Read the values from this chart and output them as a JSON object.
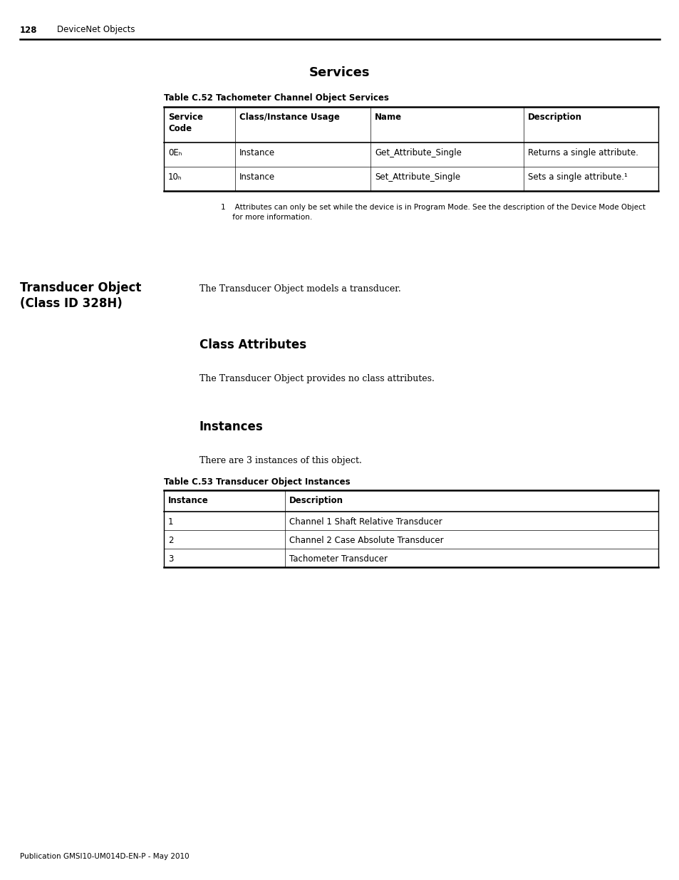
{
  "page_number": "128",
  "page_header_text": "DeviceNet Objects",
  "section1_title": "Services",
  "table1_caption": "Table C.52 Tachometer Channel Object Services",
  "table1_headers": [
    "Service\nCode",
    "Class/Instance Usage",
    "Name",
    "Description"
  ],
  "table1_rows": [
    [
      "0Eₕ",
      "Instance",
      "Get_Attribute_Single",
      "Returns a single attribute."
    ],
    [
      "10ₕ",
      "Instance",
      "Set_Attribute_Single",
      "Sets a single attribute.¹"
    ]
  ],
  "footnote_line1": "1    Attributes can only be set while the device is in Program Mode. See the description of the Device Mode Object",
  "footnote_line2": "     for more information.",
  "sidebar_title_line1": "Transducer Object",
  "sidebar_title_line2": "(Class ID 328H)",
  "body_intro": "The Transducer Object models a transducer.",
  "section2_title": "Class Attributes",
  "class_attr_text": "The Transducer Object provides no class attributes.",
  "section3_title": "Instances",
  "instances_intro": "There are 3 instances of this object.",
  "table2_caption": "Table C.53 Transducer Object Instances",
  "table2_headers": [
    "Instance",
    "Description"
  ],
  "table2_rows": [
    [
      "1",
      "Channel 1 Shaft Relative Transducer"
    ],
    [
      "2",
      "Channel 2 Case Absolute Transducer"
    ],
    [
      "3",
      "Tachometer Transducer"
    ]
  ],
  "footer_text": "Publication GMSI10-UM014D-EN-P - May 2010",
  "bg_color": "#ffffff",
  "text_color": "#000000"
}
